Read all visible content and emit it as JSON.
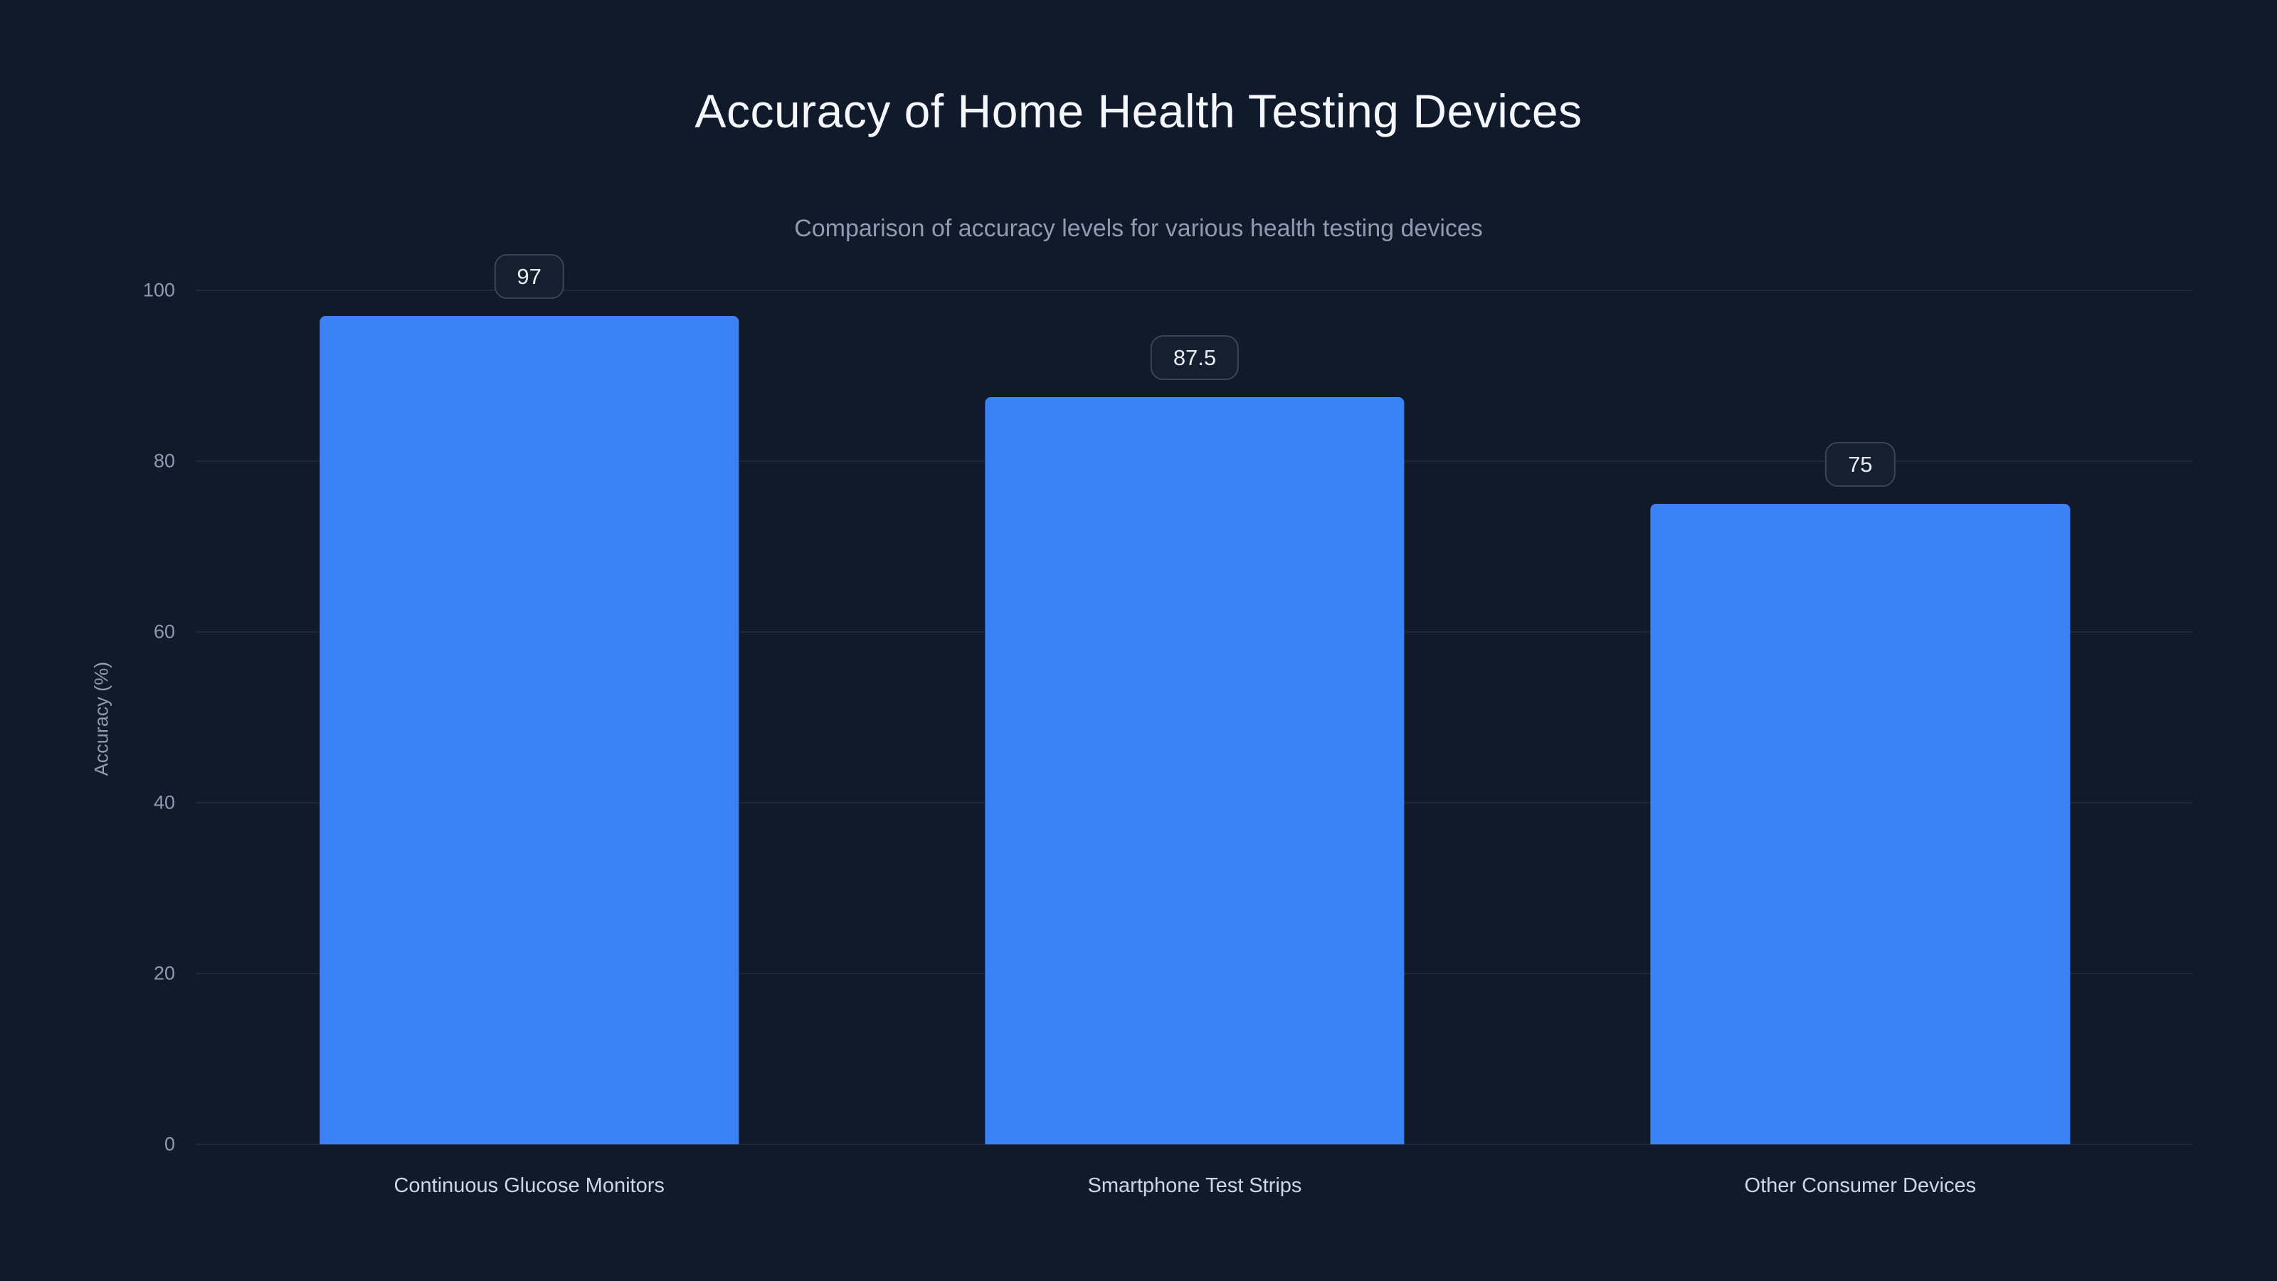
{
  "page": {
    "title": "Accuracy of Home Health Testing Devices",
    "subtitle": "Comparison of accuracy levels for various health testing devices"
  },
  "chart_data": {
    "type": "bar",
    "title": "Accuracy of Home Health Testing Devices",
    "subtitle": "Comparison of accuracy levels for various health testing devices",
    "categories": [
      "Continuous Glucose Monitors",
      "Smartphone Test Strips",
      "Other Consumer Devices"
    ],
    "values": [
      97,
      87.5,
      75
    ],
    "value_labels": [
      "97",
      "87.5",
      "75"
    ],
    "xlabel": "",
    "ylabel": "Accuracy (%)",
    "ylim": [
      0,
      100
    ],
    "yticks": [
      0,
      20,
      40,
      60,
      80,
      100
    ],
    "grid": true,
    "legend": "none",
    "colors": {
      "background": "#111a2b",
      "bar": "#3b82f6",
      "title_text": "#f4f7fb",
      "subtitle_text": "#8e9bb0",
      "tick_text": "#8e9bb0",
      "category_text": "#cdd6e2",
      "gridline": "rgba(148,163,184,0.10)",
      "badge_background": "#151f30",
      "badge_border": "#3a4557",
      "badge_text": "#e8edf4"
    }
  }
}
